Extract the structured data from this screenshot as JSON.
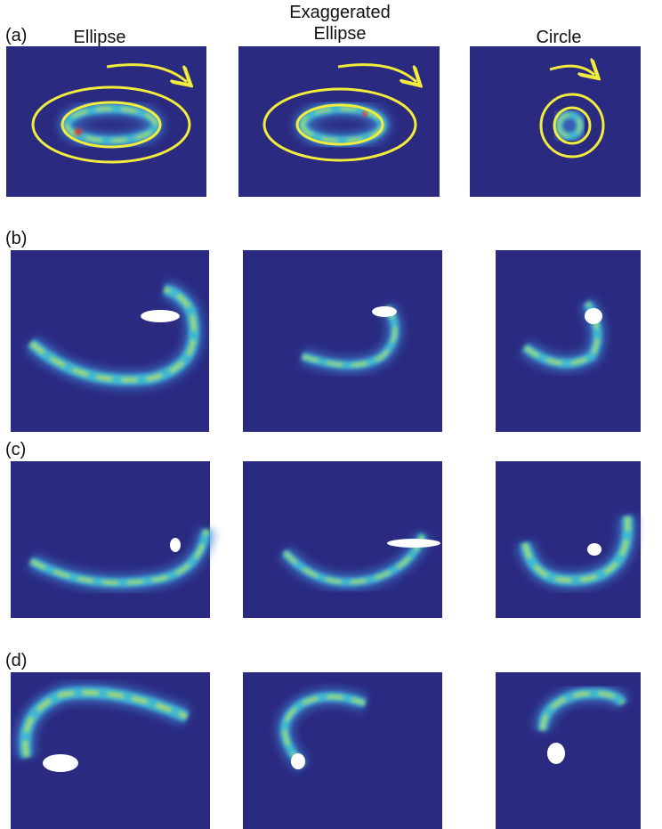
{
  "header": {
    "columns": [
      [
        "Ellipse"
      ],
      [
        "Exaggerated",
        "Ellipse"
      ],
      [
        "Circle"
      ]
    ]
  },
  "rows": [
    "(a)",
    "(b)",
    "(c)",
    "(d)"
  ]
}
